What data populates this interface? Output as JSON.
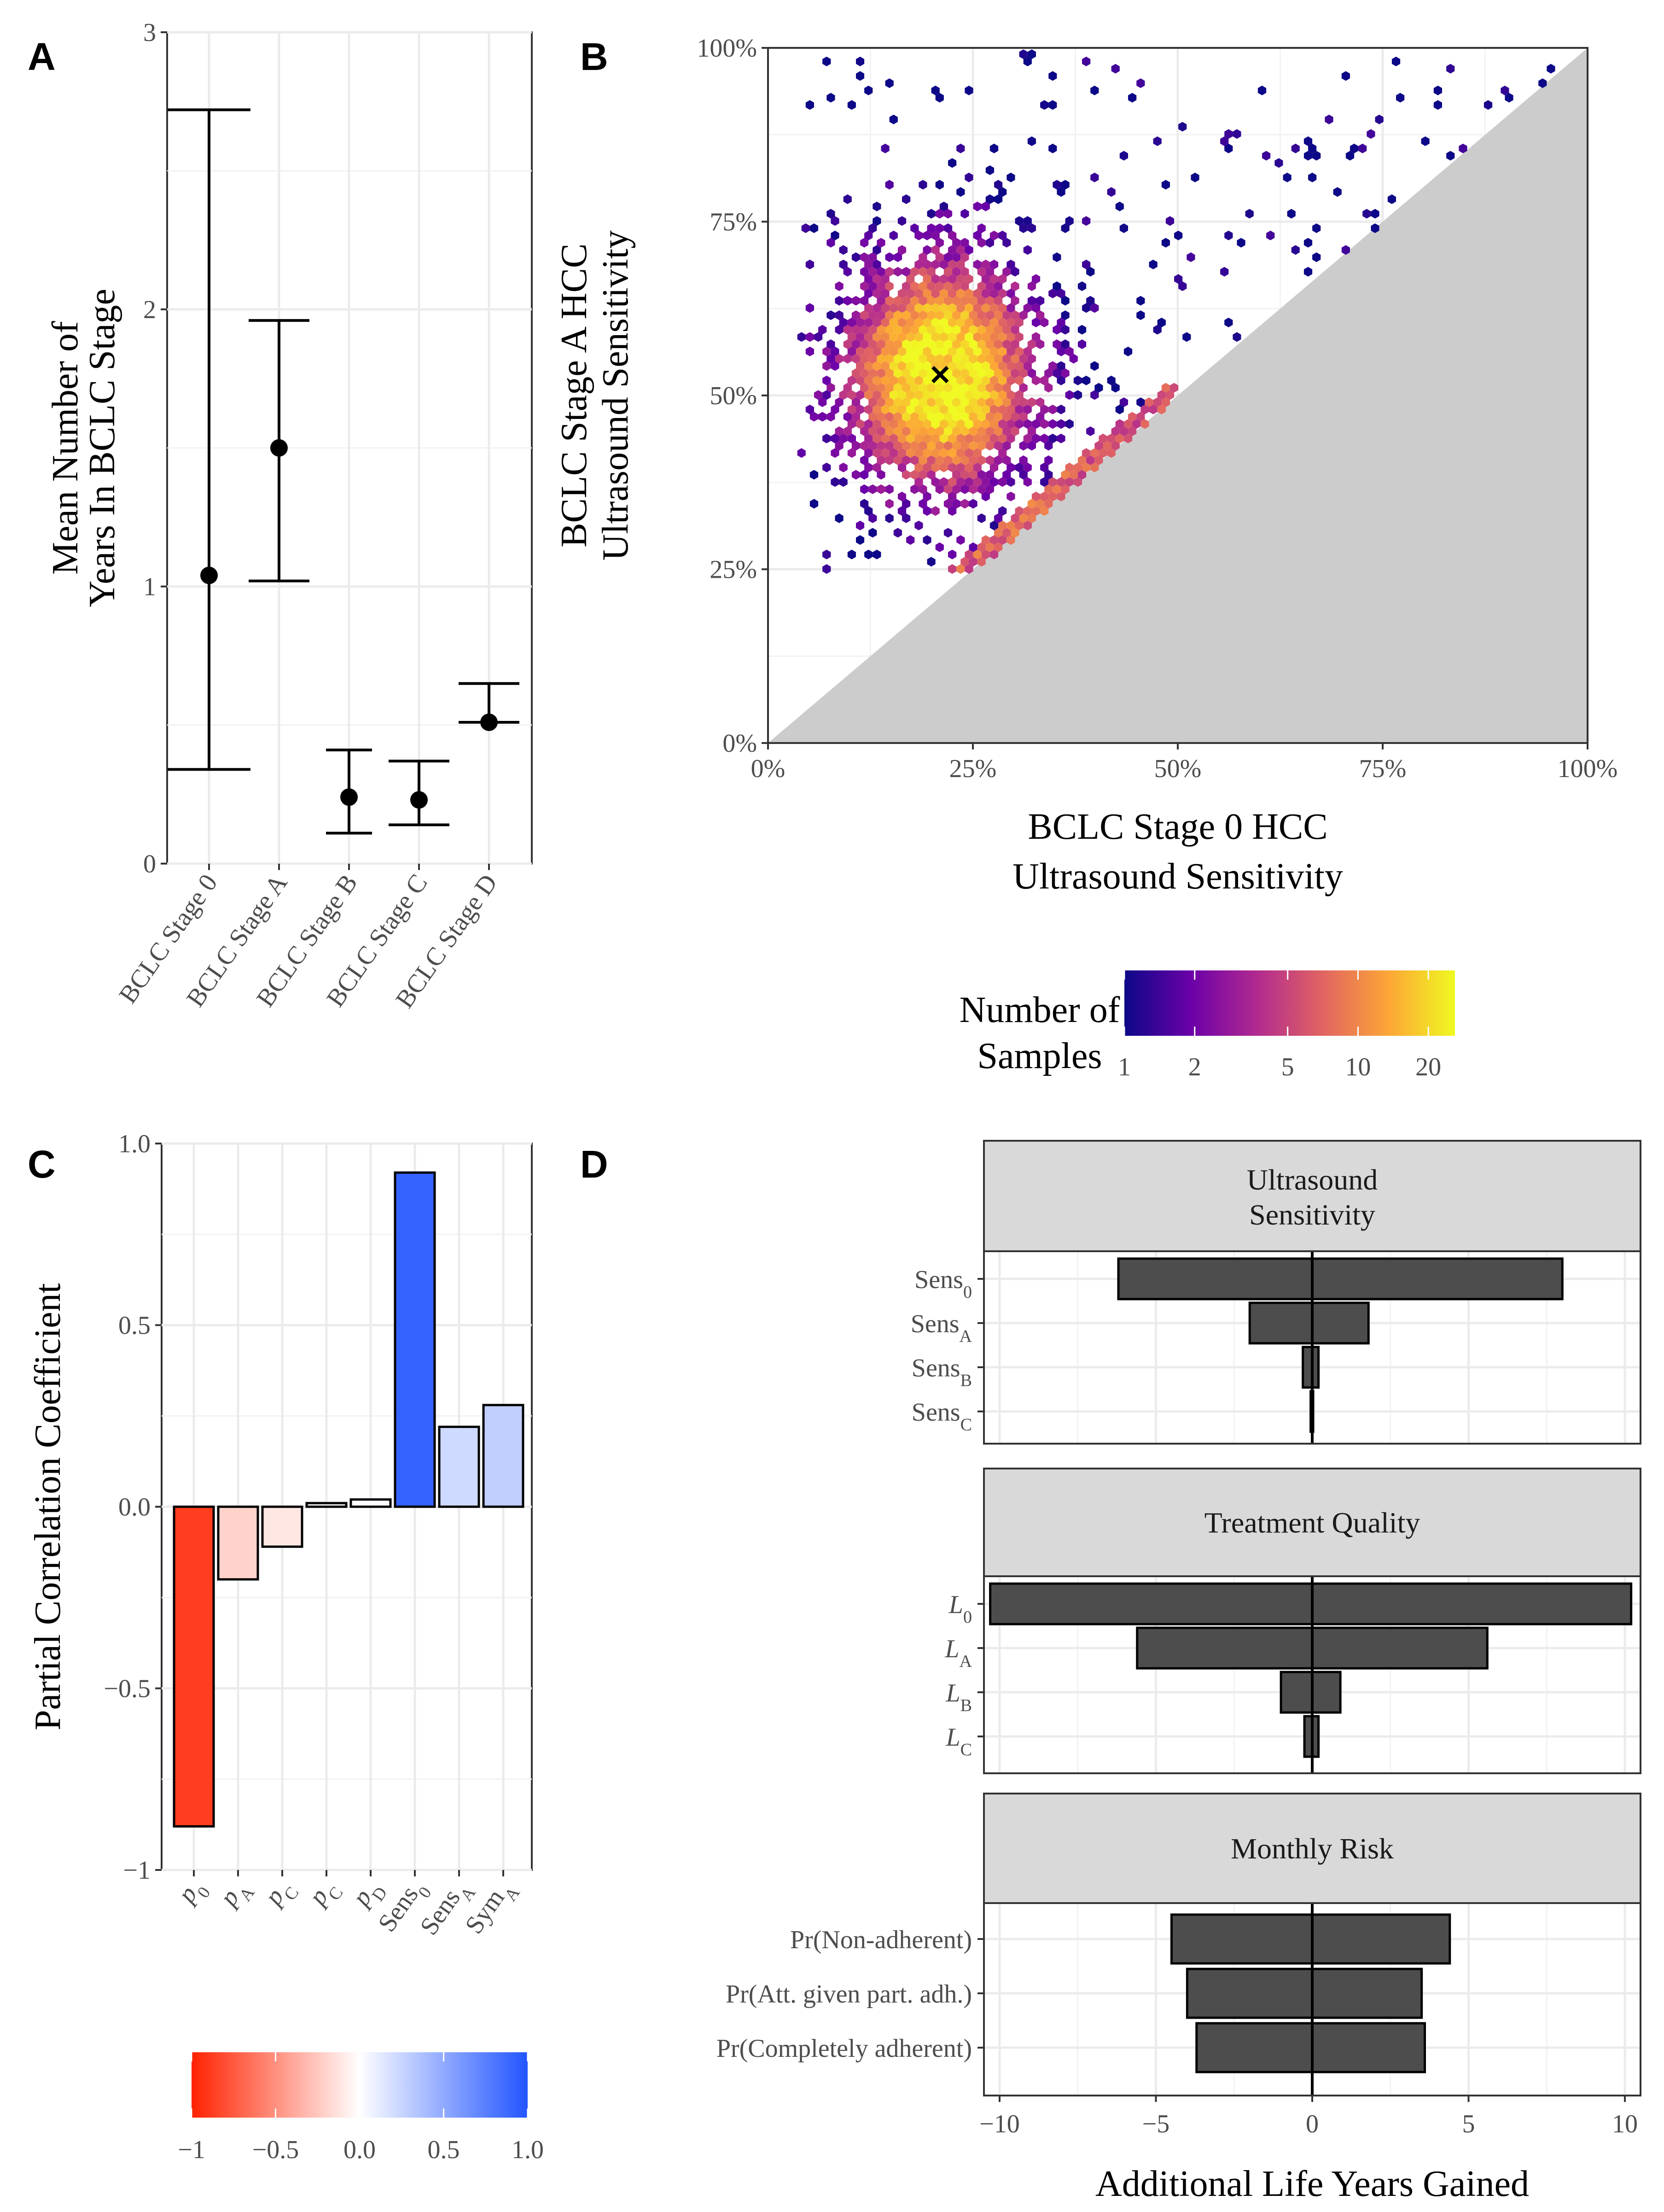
{
  "figure": {
    "panels": {
      "a": "A",
      "b": "B",
      "c": "C",
      "d": "D"
    }
  },
  "chart_data": [
    {
      "id": "A",
      "type": "scatter",
      "title": "",
      "xlabel": "",
      "ylabel": [
        "Mean Number of",
        "Years In BCLC Stage"
      ],
      "ylim": [
        0,
        3
      ],
      "yticks": [
        "0",
        "1",
        "2",
        "3"
      ],
      "categories": [
        "BCLC Stage 0",
        "BCLC Stage A",
        "BCLC Stage B",
        "BCLC Stage C",
        "BCLC Stage D"
      ],
      "values": [
        1.04,
        1.5,
        0.24,
        0.23,
        0.51
      ],
      "lower": [
        0.34,
        1.02,
        0.11,
        0.14,
        0.51
      ],
      "upper": [
        2.72,
        1.96,
        0.41,
        0.37,
        0.65
      ],
      "error_bars": true
    },
    {
      "id": "B",
      "type": "heatmap",
      "subtype": "hexbin",
      "xlabel": [
        "BCLC Stage 0 HCC",
        "Ultrasound Sensitivity"
      ],
      "ylabel": [
        "BCLC Stage A HCC",
        "Ultrasound Sensitivity"
      ],
      "xlim": [
        0,
        1
      ],
      "ylim": [
        0,
        1
      ],
      "xticks": [
        "0%",
        "25%",
        "50%",
        "75%",
        "100%"
      ],
      "yticks": [
        "0%",
        "25%",
        "50%",
        "75%",
        "100%"
      ],
      "center": {
        "x": 0.21,
        "y": 0.53
      },
      "density": {
        "sd_x": 0.075,
        "sd_y": 0.11,
        "x_min": 0.04,
        "y_min": 0.24,
        "y_max": 1.0
      },
      "shaded_region": "y < x",
      "legend": {
        "title": [
          "Number of",
          "Samples"
        ],
        "scale": "log",
        "ticks": [
          "1",
          "2",
          "5",
          "10",
          "20"
        ],
        "colors": [
          "#0d0887",
          "#6a00a8",
          "#b12a90",
          "#e16462",
          "#fca636",
          "#f0f921"
        ]
      }
    },
    {
      "id": "C",
      "type": "bar",
      "ylabel": "Partial Correlation Coefficient",
      "xlabel": "",
      "ylim": [
        -1,
        1
      ],
      "yticks": [
        "−1",
        "−0.5",
        "0.0",
        "0.5",
        "1.0"
      ],
      "categories": [
        {
          "base": "p",
          "sub": "0",
          "italic": true
        },
        {
          "base": "p",
          "sub": "A",
          "italic": true
        },
        {
          "base": "p",
          "sub": "C",
          "italic": true
        },
        {
          "base": "p",
          "sub": "C",
          "italic": true
        },
        {
          "base": "p",
          "sub": "D",
          "italic": true
        },
        {
          "base": "Sens",
          "sub": "0",
          "italic": false
        },
        {
          "base": "Sens",
          "sub": "A",
          "italic": false
        },
        {
          "base": "Sym",
          "sub": "A",
          "italic": false
        }
      ],
      "values": [
        -0.88,
        -0.2,
        -0.11,
        0.01,
        0.02,
        0.92,
        0.22,
        0.28
      ],
      "legend": {
        "ticks": [
          "−1",
          "−0.5",
          "0.0",
          "0.5",
          "1.0"
        ],
        "colors": {
          "low": "#ff2200",
          "mid": "#ffffff",
          "high": "#2255ff"
        }
      }
    },
    {
      "id": "D",
      "type": "bar",
      "orientation": "horizontal",
      "subtype": "tornado",
      "xlabel": "Additional Life Years Gained",
      "xlim": [
        -10.5,
        10.5
      ],
      "xticks": [
        "−10",
        "−5",
        "0",
        "5",
        "10"
      ],
      "facets": [
        {
          "title": [
            "Ultrasound",
            "Sensitivity"
          ],
          "rows": [
            {
              "base": "Sens",
              "sub": "0",
              "italic": false,
              "low": -6.2,
              "high": 8.0
            },
            {
              "base": "Sens",
              "sub": "A",
              "italic": false,
              "low": -2.0,
              "high": 1.8
            },
            {
              "base": "Sens",
              "sub": "B",
              "italic": false,
              "low": -0.3,
              "high": 0.2
            },
            {
              "base": "Sens",
              "sub": "C",
              "italic": false,
              "low": -0.05,
              "high": 0.03
            }
          ]
        },
        {
          "title": [
            "Treatment Quality"
          ],
          "rows": [
            {
              "base": "L",
              "sub": "0",
              "italic": true,
              "low": -10.3,
              "high": 10.2
            },
            {
              "base": "L",
              "sub": "A",
              "italic": true,
              "low": -5.6,
              "high": 5.6
            },
            {
              "base": "L",
              "sub": "B",
              "italic": true,
              "low": -1.0,
              "high": 0.9
            },
            {
              "base": "L",
              "sub": "C",
              "italic": true,
              "low": -0.25,
              "high": 0.2
            }
          ]
        },
        {
          "title": [
            "Monthly Risk"
          ],
          "rows": [
            {
              "base": "Pr(Non-adherent)",
              "sub": "",
              "italic": false,
              "low": -4.5,
              "high": 4.4
            },
            {
              "base": "Pr(Att. given part. adh.)",
              "sub": "",
              "italic": false,
              "low": -4.0,
              "high": 3.5
            },
            {
              "base": "Pr(Completely adherent)",
              "sub": "",
              "italic": false,
              "low": -3.7,
              "high": 3.6
            }
          ]
        }
      ]
    }
  ]
}
